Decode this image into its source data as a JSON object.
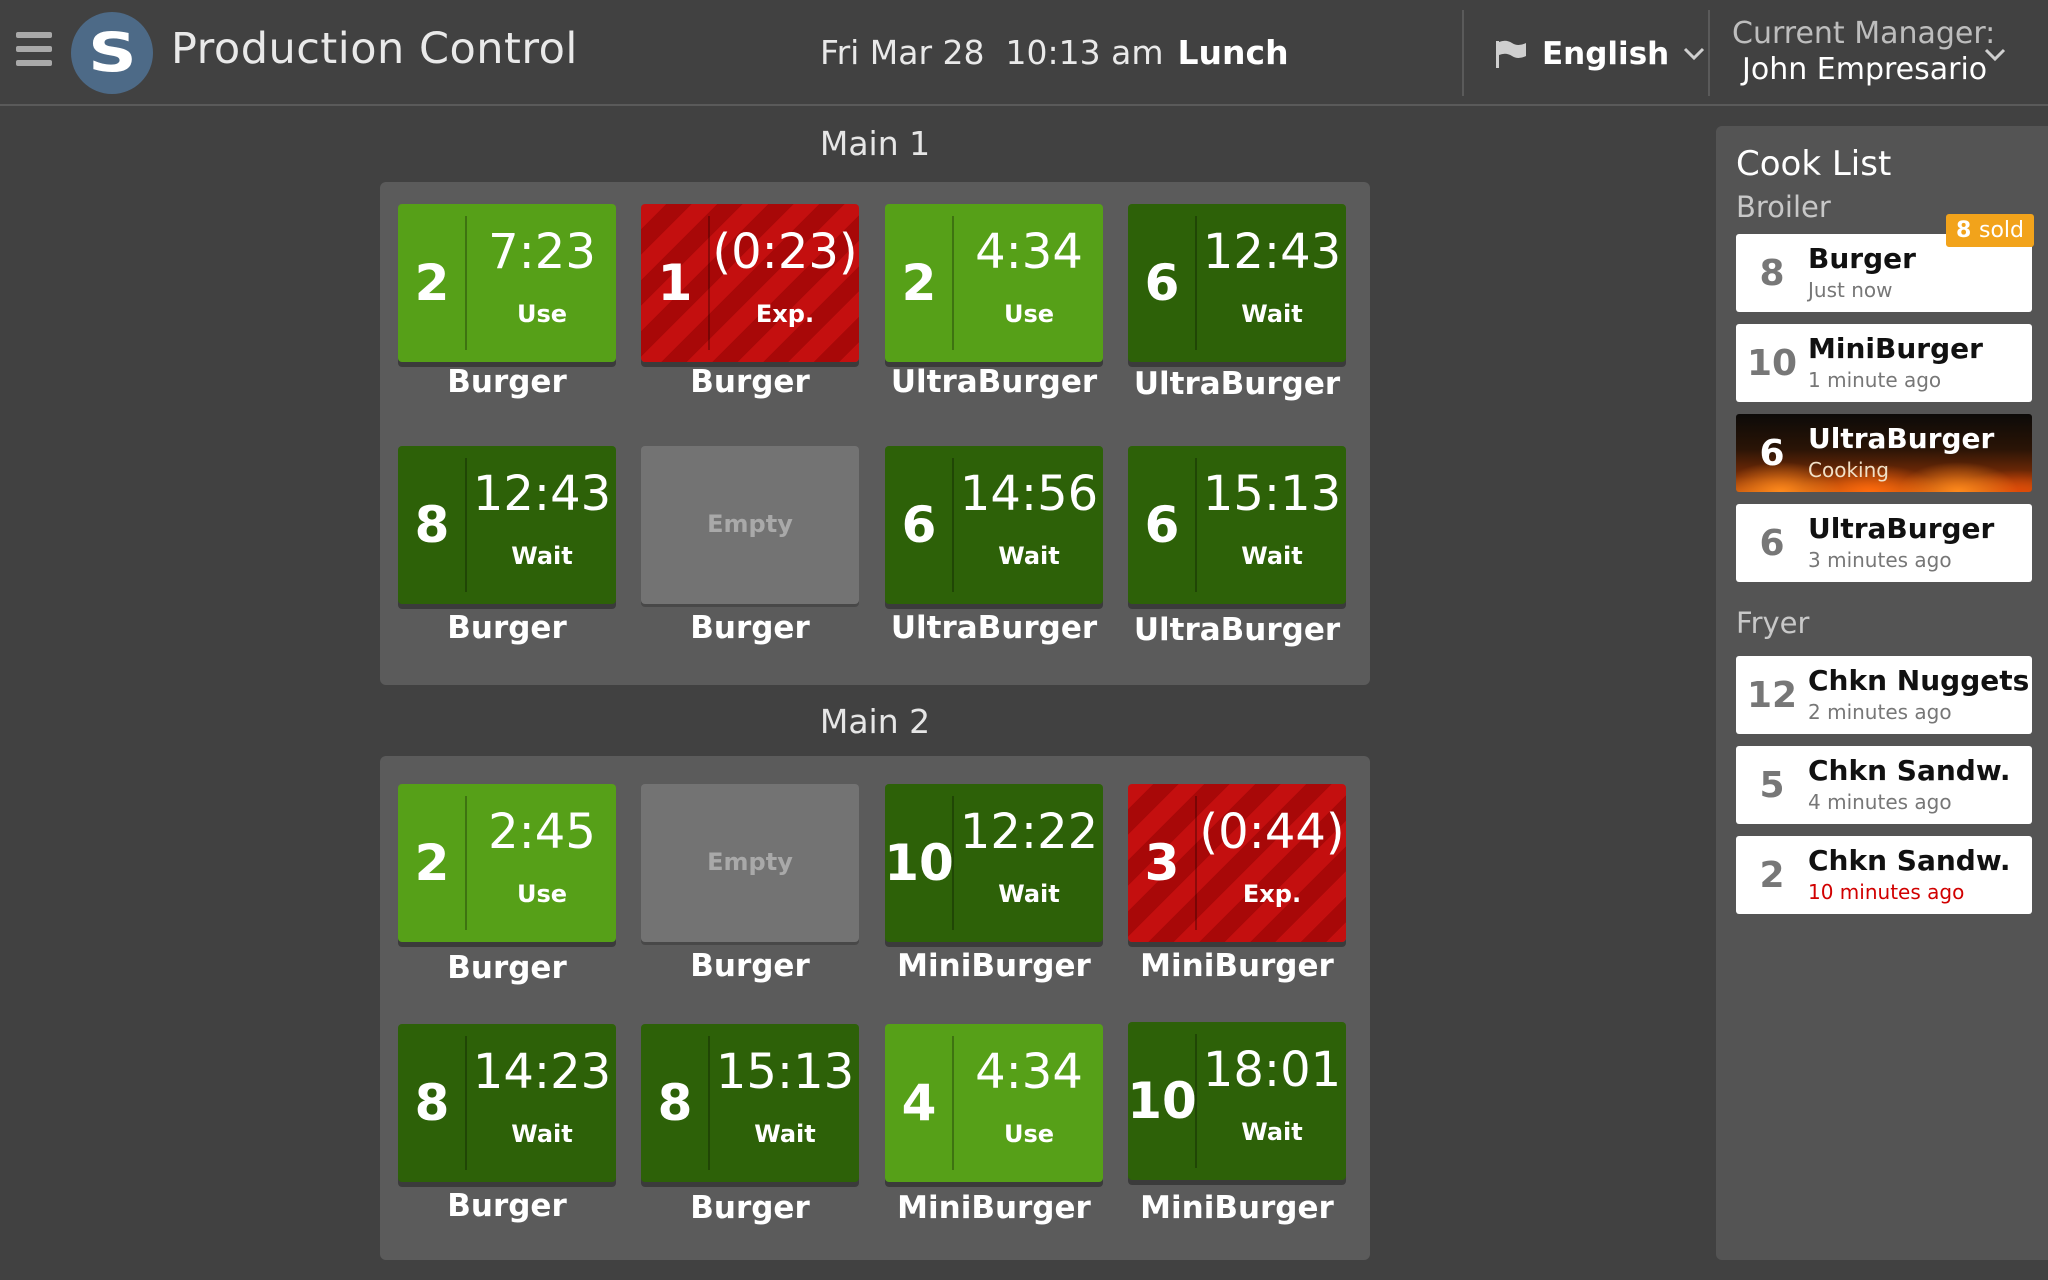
{
  "header": {
    "app_title": "Production Control",
    "logo_letter": "S",
    "date": "Fri Mar 28",
    "time": "10:13 am",
    "daypart": "Lunch",
    "language": "English",
    "manager_label": "Current Manager:",
    "manager_name": "John Empresario"
  },
  "sections": [
    {
      "title": "Main 1",
      "tiles": [
        {
          "status": "use",
          "count": "2",
          "time": "7:23",
          "state": "Use",
          "product": "Burger"
        },
        {
          "status": "exp",
          "count": "1",
          "time": "(0:23)",
          "state": "Exp.",
          "product": "Burger"
        },
        {
          "status": "use",
          "count": "2",
          "time": "4:34",
          "state": "Use",
          "product": "UltraBurger"
        },
        {
          "status": "wait",
          "count": "6",
          "time": "12:43",
          "state": "Wait",
          "product": "UltraBurger"
        },
        {
          "status": "wait",
          "count": "8",
          "time": "12:43",
          "state": "Wait",
          "product": "Burger"
        },
        {
          "status": "empty",
          "empty_label": "Empty",
          "product": "Burger"
        },
        {
          "status": "wait",
          "count": "6",
          "time": "14:56",
          "state": "Wait",
          "product": "UltraBurger"
        },
        {
          "status": "wait",
          "count": "6",
          "time": "15:13",
          "state": "Wait",
          "product": "UltraBurger"
        }
      ]
    },
    {
      "title": "Main 2",
      "tiles": [
        {
          "status": "use",
          "count": "2",
          "time": "2:45",
          "state": "Use",
          "product": "Burger"
        },
        {
          "status": "empty",
          "empty_label": "Empty",
          "product": "Burger"
        },
        {
          "status": "wait",
          "count": "10",
          "time": "12:22",
          "state": "Wait",
          "product": "MiniBurger"
        },
        {
          "status": "exp",
          "count": "3",
          "time": "(0:44)",
          "state": "Exp.",
          "product": "MiniBurger"
        },
        {
          "status": "wait",
          "count": "8",
          "time": "14:23",
          "state": "Wait",
          "product": "Burger"
        },
        {
          "status": "wait",
          "count": "8",
          "time": "15:13",
          "state": "Wait",
          "product": "Burger"
        },
        {
          "status": "use",
          "count": "4",
          "time": "4:34",
          "state": "Use",
          "product": "MiniBurger"
        },
        {
          "status": "wait",
          "count": "10",
          "time": "18:01",
          "state": "Wait",
          "product": "MiniBurger"
        }
      ]
    }
  ],
  "cook_list": {
    "title": "Cook List",
    "stations": [
      {
        "name": "Broiler",
        "items": [
          {
            "qty": "8",
            "name": "Burger",
            "time": "Just now",
            "badge_count": "8",
            "badge_word": "sold"
          },
          {
            "qty": "10",
            "name": "MiniBurger",
            "time": "1 minute ago"
          },
          {
            "qty": "6",
            "name": "UltraBurger",
            "time": "Cooking",
            "cooking": true
          },
          {
            "qty": "6",
            "name": "UltraBurger",
            "time": "3 minutes ago"
          }
        ]
      },
      {
        "name": "Fryer",
        "items": [
          {
            "qty": "12",
            "name": "Chkn Nuggets",
            "time": "2 minutes ago"
          },
          {
            "qty": "5",
            "name": "Chkn Sandw.",
            "time": "4 minutes ago"
          },
          {
            "qty": "2",
            "name": "Chkn Sandw.",
            "time": "10 minutes ago",
            "late": true
          }
        ]
      }
    ]
  },
  "colors": {
    "use": "#56a018",
    "wait": "#2d6108",
    "expired": "#c40f0f",
    "empty": "#737373",
    "badge": "#f2a31b",
    "late_text": "#d10000"
  },
  "icons": {
    "menu": "hamburger-icon",
    "language": "flag-icon",
    "dropdown": "chevron-down-icon"
  }
}
